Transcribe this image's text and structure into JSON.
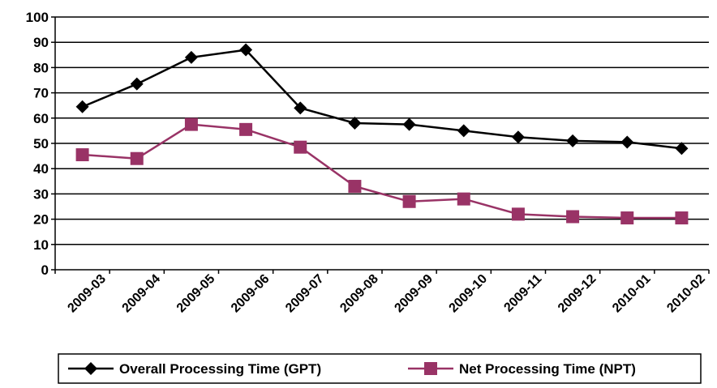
{
  "chart_data": {
    "type": "line",
    "categories": [
      "2009-03",
      "2009-04",
      "2009-05",
      "2009-06",
      "2009-07",
      "2009-08",
      "2009-09",
      "2009-10",
      "2009-11",
      "2009-12",
      "2010-01",
      "2010-02"
    ],
    "series": [
      {
        "name": "Overall Processing Time (GPT)",
        "values": [
          64.5,
          73.5,
          84,
          87,
          64,
          58,
          57.5,
          55,
          52.5,
          51,
          50.5,
          48
        ],
        "color": "#000000",
        "marker": "diamond"
      },
      {
        "name": "Net Processing Time (NPT)",
        "values": [
          45.5,
          44,
          57.5,
          55.5,
          48.5,
          33,
          27,
          28,
          22,
          21,
          20.5,
          20.5
        ],
        "color": "#993366",
        "marker": "square"
      }
    ],
    "y_ticks": [
      "0",
      "10",
      "20",
      "30",
      "40",
      "50",
      "60",
      "70",
      "80",
      "90",
      "100"
    ],
    "ylim": [
      0,
      100
    ],
    "grid": true,
    "legend_position": "bottom"
  }
}
